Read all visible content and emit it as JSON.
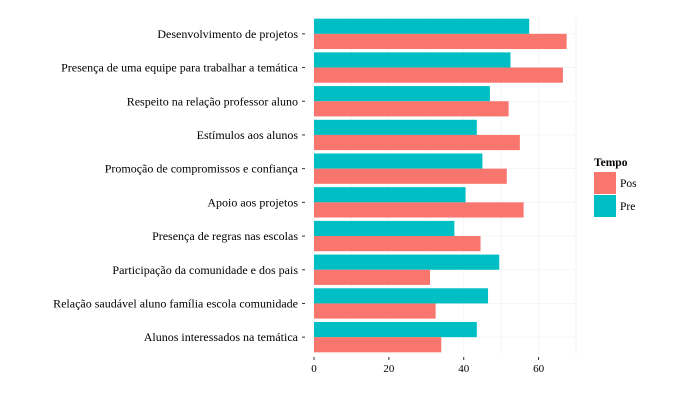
{
  "chart_data": {
    "type": "bar",
    "orientation": "horizontal",
    "categories": [
      "Desenvolvimento de projetos",
      "Presença de uma equipe para trabalhar a temática",
      "Respeito na relação professor aluno",
      "Estímulos aos alunos",
      "Promoção de compromissos e confiança",
      "Apoio aos projetos",
      "Presença de regras nas escolas",
      "Participação da comunidade e dos pais",
      "Relação saudável aluno família escola comunidade",
      "Alunos interessados na temática"
    ],
    "series": [
      {
        "name": "Pre",
        "color": "#00BFC4",
        "values": [
          57.5,
          52.5,
          47,
          43.5,
          45,
          40.5,
          37.5,
          49.5,
          46.5,
          43.5
        ]
      },
      {
        "name": "Pos",
        "color": "#F8766D",
        "values": [
          67.5,
          66.5,
          52,
          55,
          51.5,
          56,
          44.5,
          31,
          32.5,
          34
        ]
      }
    ],
    "xlim": [
      0,
      70
    ],
    "x_ticks": [
      0,
      20,
      40,
      60
    ],
    "grid": true,
    "legend": {
      "title": "Tempo",
      "placement": "right",
      "items": [
        {
          "label": "Pos",
          "color": "#F8766D"
        },
        {
          "label": "Pre",
          "color": "#00BFC4"
        }
      ]
    }
  }
}
